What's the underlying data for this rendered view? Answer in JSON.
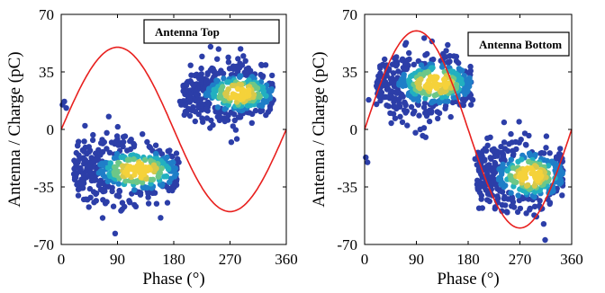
{
  "chart_data": [
    {
      "type": "scatter",
      "title": "",
      "legend": [
        "Antenna Top"
      ],
      "xlabel": "Phase (°)",
      "ylabel": "Antenna / Charge (pC)",
      "xlim": [
        0,
        360
      ],
      "ylim": [
        -70,
        70
      ],
      "xticks": [
        "0",
        "90",
        "180",
        "270",
        "360"
      ],
      "yticks": [
        "70",
        "35",
        "0",
        "-35",
        "-70"
      ],
      "grid": false,
      "legend_position": "top-right",
      "sine_curve": {
        "color": "#e8201e",
        "amplitude": 50,
        "phase_peak_deg": 90
      },
      "clusters": [
        {
          "x_range": [
            20,
            185
          ],
          "y_center": -25,
          "y_spread": 10,
          "color": "#1f5fb8"
        },
        {
          "x_range": [
            195,
            340
          ],
          "y_center": 22,
          "y_spread": 9,
          "color": "#1f5fb8"
        }
      ],
      "outliers": [
        {
          "x": 2,
          "y": 15
        },
        {
          "x": 5,
          "y": 17
        },
        {
          "x": 8,
          "y": 13
        },
        {
          "x": 186,
          "y": -18
        },
        {
          "x": 188,
          "y": -20
        },
        {
          "x": 190,
          "y": 17
        },
        {
          "x": 192,
          "y": 15
        }
      ],
      "density_colors": [
        "#2c3ea8",
        "#1f7ec8",
        "#22b0c0",
        "#6cc788",
        "#d8c94a",
        "#f5d23a"
      ]
    },
    {
      "type": "scatter",
      "title": "",
      "legend": [
        "Antenna Bottom"
      ],
      "xlabel": "Phase (°)",
      "ylabel": "Antenna / Charge (pC)",
      "xlim": [
        0,
        360
      ],
      "ylim": [
        -70,
        70
      ],
      "xticks": [
        "0",
        "90",
        "180",
        "270",
        "360"
      ],
      "yticks": [
        "70",
        "35",
        "0",
        "-35",
        "-70"
      ],
      "grid": false,
      "legend_position": "top-right",
      "sine_curve": {
        "color": "#e8201e",
        "amplitude": 60,
        "phase_peak_deg": 90
      },
      "clusters": [
        {
          "x_range": [
            20,
            185
          ],
          "y_center": 28,
          "y_spread": 10,
          "color": "#1f5fb8"
        },
        {
          "x_range": [
            195,
            345
          ],
          "y_center": -28,
          "y_spread": 11,
          "color": "#1f5fb8"
        }
      ],
      "outliers": [
        {
          "x": 2,
          "y": -17
        },
        {
          "x": 5,
          "y": -20
        },
        {
          "x": 7,
          "y": 18
        },
        {
          "x": 185,
          "y": 15
        },
        {
          "x": 188,
          "y": 18
        },
        {
          "x": 192,
          "y": -18
        }
      ],
      "density_colors": [
        "#2c3ea8",
        "#1f7ec8",
        "#22b0c0",
        "#6cc788",
        "#d8c94a",
        "#f5d23a"
      ]
    }
  ]
}
